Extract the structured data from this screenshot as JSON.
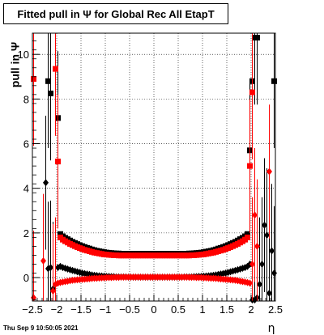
{
  "title": "Fitted pull in  Ψ  for Global Rec All EtapT",
  "footer": "Thu Sep  9 10:50:05 2021",
  "chart_data": {
    "type": "scatter",
    "title": "Fitted pull in  Ψ  for Global Rec All EtapT",
    "xlabel": "η",
    "ylabel": "pull in  Ψ",
    "xlim": [
      -2.5,
      2.5
    ],
    "ylim": [
      -1.05,
      10.95
    ],
    "x_ticks": [
      -2.5,
      -2,
      -1.5,
      -1,
      -0.5,
      0,
      0.5,
      1,
      1.5,
      2,
      2.5
    ],
    "x_tick_labels": [
      "−2.5",
      "−2",
      "−1.5",
      "−1",
      "−0.5",
      "0",
      "0.5",
      "1",
      "1.5",
      "2",
      "2.5"
    ],
    "y_ticks": [
      0,
      2,
      4,
      6,
      8,
      10
    ],
    "y_tick_labels": [
      "0",
      "2",
      "4",
      "6",
      "8",
      "10"
    ],
    "grid": true,
    "series": [
      {
        "color": "#000000",
        "marker": "square",
        "description_points": "sigma",
        "x": [
          -2.175,
          -2.125,
          -1.975,
          -1.925,
          -1.875,
          -1.825,
          -1.775,
          -1.725,
          -1.675,
          -1.625,
          -1.575,
          -1.525,
          -1.475,
          -1.425,
          -1.375,
          -1.325,
          -1.275,
          -1.225,
          -1.175,
          -1.125,
          -1.075,
          -1.025,
          -0.975,
          -0.925,
          -0.875,
          -0.825,
          -0.775,
          -0.725,
          -0.675,
          -0.625,
          -0.575,
          -0.525,
          -0.475,
          -0.425,
          -0.375,
          -0.325,
          -0.275,
          -0.225,
          -0.175,
          -0.125,
          -0.075,
          -0.025,
          0.025,
          0.075,
          0.125,
          0.175,
          0.225,
          0.275,
          0.325,
          0.375,
          0.425,
          0.475,
          0.525,
          0.575,
          0.625,
          0.675,
          0.725,
          0.775,
          0.825,
          0.875,
          0.925,
          0.975,
          1.025,
          1.075,
          1.125,
          1.175,
          1.225,
          1.275,
          1.325,
          1.375,
          1.425,
          1.475,
          1.525,
          1.575,
          1.625,
          1.675,
          1.725,
          1.775,
          1.825,
          1.875,
          1.925,
          1.975,
          2.025,
          2.075,
          2.125,
          2.475
        ],
        "y": [
          8.8,
          8.25,
          7.15,
          1.95,
          1.85,
          1.78,
          1.72,
          1.66,
          1.6,
          1.55,
          1.5,
          1.45,
          1.41,
          1.37,
          1.33,
          1.3,
          1.26,
          1.23,
          1.2,
          1.18,
          1.16,
          1.14,
          1.12,
          1.11,
          1.1,
          1.09,
          1.08,
          1.08,
          1.07,
          1.07,
          1.07,
          1.07,
          1.07,
          1.07,
          1.07,
          1.07,
          1.07,
          1.07,
          1.07,
          1.07,
          1.07,
          1.07,
          1.07,
          1.07,
          1.07,
          1.07,
          1.07,
          1.07,
          1.07,
          1.07,
          1.07,
          1.07,
          1.07,
          1.07,
          1.07,
          1.07,
          1.08,
          1.08,
          1.09,
          1.1,
          1.11,
          1.12,
          1.14,
          1.16,
          1.18,
          1.2,
          1.23,
          1.26,
          1.3,
          1.33,
          1.37,
          1.41,
          1.45,
          1.5,
          1.55,
          1.6,
          1.66,
          1.72,
          1.78,
          1.85,
          1.95,
          5.7,
          8.8,
          10.75,
          10.75,
          8.8
        ],
        "yerr": [
          3.0,
          3.0,
          3.0,
          0.05,
          0.05,
          0.05,
          0.05,
          0.05,
          0.05,
          0.05,
          0.05,
          0.05,
          0.05,
          0.05,
          0.05,
          0.05,
          0.05,
          0.05,
          0.05,
          0.05,
          0.05,
          0.05,
          0.05,
          0.05,
          0.05,
          0.05,
          0.05,
          0.05,
          0.05,
          0.05,
          0.05,
          0.05,
          0.05,
          0.05,
          0.05,
          0.05,
          0.05,
          0.05,
          0.05,
          0.05,
          0.05,
          0.05,
          0.05,
          0.05,
          0.05,
          0.05,
          0.05,
          0.05,
          0.05,
          0.05,
          0.05,
          0.05,
          0.05,
          0.05,
          0.05,
          0.05,
          0.05,
          0.05,
          0.05,
          0.05,
          0.05,
          0.05,
          0.05,
          0.05,
          0.05,
          0.05,
          0.05,
          0.05,
          0.05,
          0.05,
          0.05,
          0.05,
          0.05,
          0.05,
          0.05,
          0.05,
          0.05,
          0.05,
          0.05,
          0.05,
          0.05,
          3.0,
          3.0,
          3.0,
          3.0,
          3.0
        ]
      },
      {
        "color": "#ff0000",
        "marker": "square",
        "description_points": "sigma",
        "x": [
          -2.475,
          -2.025,
          -1.975,
          -1.925,
          -1.875,
          -1.825,
          -1.775,
          -1.725,
          -1.675,
          -1.625,
          -1.575,
          -1.525,
          -1.475,
          -1.425,
          -1.375,
          -1.325,
          -1.275,
          -1.225,
          -1.175,
          -1.125,
          -1.075,
          -1.025,
          -0.975,
          -0.925,
          -0.875,
          -0.825,
          -0.775,
          -0.725,
          -0.675,
          -0.625,
          -0.575,
          -0.525,
          -0.475,
          -0.425,
          -0.375,
          -0.325,
          -0.275,
          -0.225,
          -0.175,
          -0.125,
          -0.075,
          -0.025,
          0.025,
          0.075,
          0.125,
          0.175,
          0.225,
          0.275,
          0.325,
          0.375,
          0.425,
          0.475,
          0.525,
          0.575,
          0.625,
          0.675,
          0.725,
          0.775,
          0.825,
          0.875,
          0.925,
          0.975,
          1.025,
          1.075,
          1.125,
          1.175,
          1.225,
          1.275,
          1.325,
          1.375,
          1.425,
          1.475,
          1.525,
          1.575,
          1.625,
          1.675,
          1.725,
          1.775,
          1.825,
          1.875,
          1.925,
          1.975,
          2.025
        ],
        "y": [
          8.9,
          9.35,
          5.2,
          1.8,
          1.7,
          1.63,
          1.57,
          1.51,
          1.46,
          1.41,
          1.36,
          1.32,
          1.28,
          1.24,
          1.21,
          1.18,
          1.15,
          1.12,
          1.1,
          1.08,
          1.06,
          1.04,
          1.03,
          1.02,
          1.01,
          1.0,
          1.0,
          0.99,
          0.99,
          0.99,
          0.99,
          0.99,
          0.99,
          0.99,
          0.99,
          0.99,
          0.99,
          0.99,
          0.99,
          0.99,
          0.99,
          0.99,
          0.99,
          0.99,
          0.99,
          0.99,
          0.99,
          0.99,
          0.99,
          0.99,
          0.99,
          0.99,
          0.99,
          0.99,
          0.99,
          0.99,
          0.99,
          1.0,
          1.0,
          1.01,
          1.02,
          1.03,
          1.04,
          1.06,
          1.08,
          1.1,
          1.12,
          1.15,
          1.18,
          1.21,
          1.24,
          1.28,
          1.32,
          1.36,
          1.41,
          1.46,
          1.51,
          1.57,
          1.63,
          1.7,
          1.8,
          5.0,
          8.3
        ],
        "yerr": [
          3.0,
          3.0,
          3.0,
          0.05,
          0.05,
          0.05,
          0.05,
          0.05,
          0.05,
          0.05,
          0.05,
          0.05,
          0.05,
          0.05,
          0.05,
          0.05,
          0.05,
          0.05,
          0.05,
          0.05,
          0.05,
          0.05,
          0.05,
          0.05,
          0.05,
          0.05,
          0.05,
          0.05,
          0.05,
          0.05,
          0.05,
          0.05,
          0.05,
          0.05,
          0.05,
          0.05,
          0.05,
          0.05,
          0.05,
          0.05,
          0.05,
          0.05,
          0.05,
          0.05,
          0.05,
          0.05,
          0.05,
          0.05,
          0.05,
          0.05,
          0.05,
          0.05,
          0.05,
          0.05,
          0.05,
          0.05,
          0.05,
          0.05,
          0.05,
          0.05,
          0.05,
          0.05,
          0.05,
          0.05,
          0.05,
          0.05,
          0.05,
          0.05,
          0.05,
          0.05,
          0.05,
          0.05,
          0.05,
          0.05,
          0.05,
          0.05,
          0.05,
          0.05,
          0.05,
          0.05,
          0.05,
          3.0,
          3.0
        ]
      },
      {
        "color": "#000000",
        "marker": "diamond",
        "description_points": "mean",
        "x": [
          -2.225,
          -2.175,
          -2.125,
          -2.075,
          -1.975,
          -1.925,
          -1.875,
          -1.825,
          -1.775,
          -1.725,
          -1.675,
          -1.625,
          -1.575,
          -1.525,
          -1.475,
          -1.425,
          -1.375,
          -1.325,
          -1.275,
          -1.225,
          -1.175,
          -1.125,
          -1.075,
          -1.025,
          -0.975,
          -0.925,
          -0.875,
          -0.825,
          -0.775,
          -0.725,
          -0.675,
          -0.625,
          -0.575,
          -0.525,
          -0.475,
          -0.425,
          -0.375,
          -0.325,
          -0.275,
          -0.225,
          -0.175,
          -0.125,
          -0.075,
          -0.025,
          0.025,
          0.075,
          0.125,
          0.175,
          0.225,
          0.275,
          0.325,
          0.375,
          0.425,
          0.475,
          0.525,
          0.575,
          0.625,
          0.675,
          0.725,
          0.775,
          0.825,
          0.875,
          0.925,
          0.975,
          1.025,
          1.075,
          1.125,
          1.175,
          1.225,
          1.275,
          1.325,
          1.375,
          1.425,
          1.475,
          1.525,
          1.575,
          1.625,
          1.675,
          1.725,
          1.775,
          1.825,
          1.875,
          1.925,
          1.975,
          2.025,
          2.075,
          2.125,
          2.175,
          2.225,
          2.275,
          2.325,
          2.375,
          2.425,
          2.475
        ],
        "y": [
          4.25,
          0.4,
          0.45,
          -0.5,
          0.45,
          0.5,
          0.45,
          0.42,
          0.38,
          0.35,
          0.32,
          0.29,
          0.26,
          0.23,
          0.2,
          0.18,
          0.16,
          0.14,
          0.12,
          0.1,
          0.09,
          0.08,
          0.07,
          0.06,
          0.05,
          0.05,
          0.04,
          0.04,
          0.03,
          0.03,
          0.03,
          0.03,
          0.03,
          0.02,
          0.02,
          0.02,
          0.02,
          0.02,
          0.02,
          0.02,
          0.02,
          0.02,
          0.02,
          0.02,
          0.02,
          0.02,
          0.02,
          0.02,
          0.02,
          0.02,
          0.02,
          0.02,
          0.02,
          0.02,
          0.02,
          0.02,
          0.03,
          0.03,
          0.03,
          0.03,
          0.04,
          0.04,
          0.05,
          0.05,
          0.06,
          0.07,
          0.08,
          0.09,
          0.1,
          0.12,
          0.14,
          0.16,
          0.18,
          0.2,
          0.23,
          0.26,
          0.29,
          0.32,
          0.35,
          0.38,
          0.42,
          0.45,
          0.5,
          0.6,
          -1.0,
          -1.0,
          -0.9,
          -0.3,
          0.6,
          2.35,
          1.9,
          -0.7,
          1.2,
          0.2
        ],
        "yerr": [
          3.0,
          3.0,
          3.0,
          3.0,
          0.05,
          0.05,
          0.05,
          0.05,
          0.05,
          0.05,
          0.05,
          0.05,
          0.05,
          0.05,
          0.05,
          0.05,
          0.05,
          0.05,
          0.05,
          0.05,
          0.05,
          0.05,
          0.05,
          0.05,
          0.05,
          0.05,
          0.05,
          0.05,
          0.05,
          0.05,
          0.05,
          0.05,
          0.05,
          0.05,
          0.05,
          0.05,
          0.05,
          0.05,
          0.05,
          0.05,
          0.05,
          0.05,
          0.05,
          0.05,
          0.05,
          0.05,
          0.05,
          0.05,
          0.05,
          0.05,
          0.05,
          0.05,
          0.05,
          0.05,
          0.05,
          0.05,
          0.05,
          0.05,
          0.05,
          0.05,
          0.05,
          0.05,
          0.05,
          0.05,
          0.05,
          0.05,
          0.05,
          0.05,
          0.05,
          0.05,
          0.05,
          0.05,
          0.05,
          0.05,
          0.05,
          0.05,
          0.05,
          0.05,
          0.05,
          0.05,
          0.05,
          0.05,
          0.05,
          0.05,
          3.0,
          3.0,
          3.0,
          3.0,
          3.0,
          3.0,
          3.0,
          3.0,
          3.0,
          3.0
        ]
      },
      {
        "color": "#ff0000",
        "marker": "diamond",
        "description_points": "mean",
        "x": [
          -2.475,
          -2.275,
          -2.075,
          -2.025,
          -1.975,
          -1.925,
          -1.875,
          -1.825,
          -1.775,
          -1.725,
          -1.675,
          -1.625,
          -1.575,
          -1.525,
          -1.475,
          -1.425,
          -1.375,
          -1.325,
          -1.275,
          -1.225,
          -1.175,
          -1.125,
          -1.075,
          -1.025,
          -0.975,
          -0.925,
          -0.875,
          -0.825,
          -0.775,
          -0.725,
          -0.675,
          -0.625,
          -0.575,
          -0.525,
          -0.475,
          -0.425,
          -0.375,
          -0.325,
          -0.275,
          -0.225,
          -0.175,
          -0.125,
          -0.075,
          -0.025,
          0.025,
          0.075,
          0.125,
          0.175,
          0.225,
          0.275,
          0.325,
          0.375,
          0.425,
          0.475,
          0.525,
          0.575,
          0.625,
          0.675,
          0.725,
          0.775,
          0.825,
          0.875,
          0.925,
          0.975,
          1.025,
          1.075,
          1.125,
          1.175,
          1.225,
          1.275,
          1.325,
          1.375,
          1.425,
          1.475,
          1.525,
          1.575,
          1.625,
          1.675,
          1.725,
          1.775,
          1.825,
          1.875,
          1.925,
          1.975,
          2.025,
          2.075,
          2.125,
          2.375
        ],
        "y": [
          -0.9,
          0.75,
          -0.6,
          -0.3,
          -0.25,
          -0.22,
          -0.2,
          -0.18,
          -0.16,
          -0.14,
          -0.12,
          -0.11,
          -0.1,
          -0.09,
          -0.08,
          -0.07,
          -0.06,
          -0.05,
          -0.04,
          -0.03,
          -0.03,
          -0.02,
          -0.01,
          -0.01,
          0.0,
          0.0,
          0.0,
          0.01,
          0.01,
          0.01,
          0.02,
          0.02,
          0.02,
          0.02,
          0.02,
          0.02,
          0.02,
          0.02,
          0.02,
          0.02,
          0.02,
          0.02,
          0.02,
          0.02,
          0.02,
          0.02,
          0.02,
          0.02,
          0.02,
          0.02,
          0.02,
          0.02,
          0.02,
          0.02,
          0.02,
          0.02,
          0.02,
          0.02,
          0.01,
          0.01,
          0.01,
          0.0,
          0.0,
          0.0,
          -0.01,
          -0.01,
          -0.02,
          -0.03,
          -0.03,
          -0.04,
          -0.05,
          -0.06,
          -0.07,
          -0.08,
          -0.09,
          -0.1,
          -0.11,
          -0.12,
          -0.14,
          -0.16,
          -0.18,
          -0.2,
          -0.22,
          -0.25,
          0.6,
          2.8,
          1.4,
          4.75
        ],
        "yerr": [
          3.0,
          3.0,
          3.0,
          3.0,
          0.05,
          0.05,
          0.05,
          0.05,
          0.05,
          0.05,
          0.05,
          0.05,
          0.05,
          0.05,
          0.05,
          0.05,
          0.05,
          0.05,
          0.05,
          0.05,
          0.05,
          0.05,
          0.05,
          0.05,
          0.05,
          0.05,
          0.05,
          0.05,
          0.05,
          0.05,
          0.05,
          0.05,
          0.05,
          0.05,
          0.05,
          0.05,
          0.05,
          0.05,
          0.05,
          0.05,
          0.05,
          0.05,
          0.05,
          0.05,
          0.05,
          0.05,
          0.05,
          0.05,
          0.05,
          0.05,
          0.05,
          0.05,
          0.05,
          0.05,
          0.05,
          0.05,
          0.05,
          0.05,
          0.05,
          0.05,
          0.05,
          0.05,
          0.05,
          0.05,
          0.05,
          0.05,
          0.05,
          0.05,
          0.05,
          0.05,
          0.05,
          0.05,
          0.05,
          0.05,
          0.05,
          0.05,
          0.05,
          0.05,
          0.05,
          0.05,
          0.05,
          0.05,
          0.05,
          0.05,
          3.0,
          3.0,
          3.0,
          3.0
        ]
      }
    ]
  }
}
